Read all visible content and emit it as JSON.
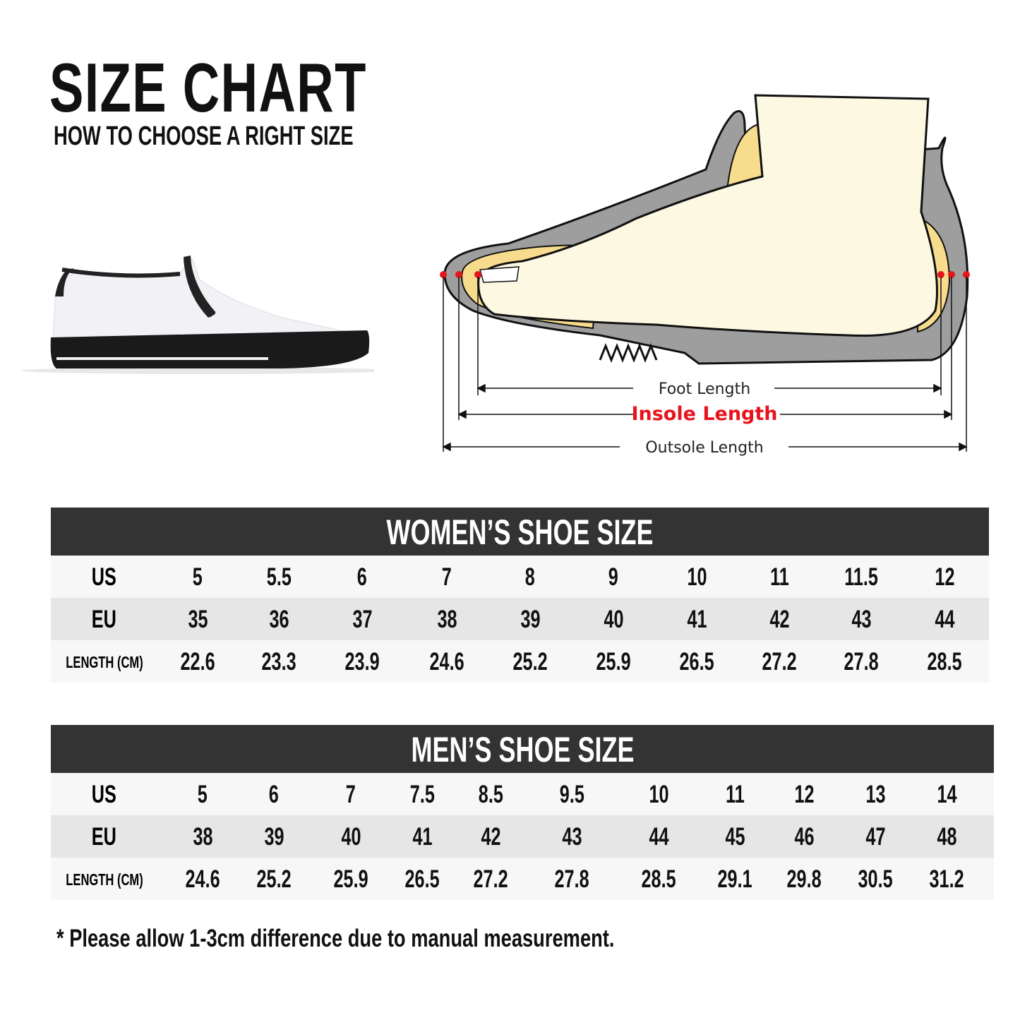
{
  "header": {
    "title": "SIZE CHART",
    "subtitle": "HOW TO CHOOSE A RIGHT SIZE"
  },
  "diagram": {
    "foot_length": "Foot Length",
    "insole_length": "Insole Length",
    "outsole_length": "Outsole Length",
    "accent_color": "#e8141c"
  },
  "women": {
    "title": "WOMEN’S SHOE SIZE",
    "row_labels": [
      "US",
      "EU",
      "LENGTH (CM)"
    ],
    "us": [
      "5",
      "5.5",
      "6",
      "7",
      "8",
      "9",
      "10",
      "11",
      "11.5",
      "12"
    ],
    "eu": [
      "35",
      "36",
      "37",
      "38",
      "39",
      "40",
      "41",
      "42",
      "43",
      "44"
    ],
    "length_cm": [
      "22.6",
      "23.3",
      "23.9",
      "24.6",
      "25.2",
      "25.9",
      "26.5",
      "27.2",
      "27.8",
      "28.5"
    ]
  },
  "men": {
    "title": "MEN’S SHOE SIZE",
    "row_labels": [
      "US",
      "EU",
      "LENGTH (CM)"
    ],
    "us": [
      "5",
      "6",
      "7",
      "7.5",
      "8.5",
      "9.5",
      "10",
      "11",
      "12",
      "13",
      "14"
    ],
    "eu": [
      "38",
      "39",
      "40",
      "41",
      "42",
      "43",
      "44",
      "45",
      "46",
      "47",
      "48"
    ],
    "length_cm": [
      "24.6",
      "25.2",
      "25.9",
      "26.5",
      "27.2",
      "27.8",
      "28.5",
      "29.1",
      "29.8",
      "30.5",
      "31.2"
    ]
  },
  "note": "* Please allow 1-3cm difference due to manual measurement."
}
